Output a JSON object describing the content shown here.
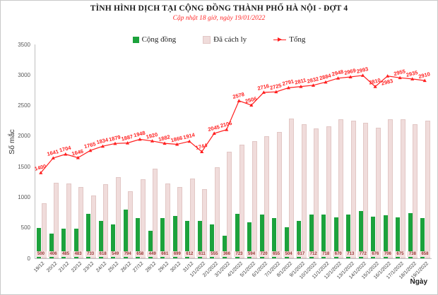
{
  "header": {
    "title": "TÌNH HÌNH DỊCH TẠI CỘNG ĐỒNG THÀNH PHỐ HÀ NỘI - ĐỢT 4",
    "subtitle": "Cập nhật 18 giờ, ngày 19/01/2022"
  },
  "legend": {
    "items": [
      {
        "label": "Cộng đồng",
        "color": "#1ca23c",
        "kind": "square"
      },
      {
        "label": "Đã cách ly",
        "color": "#f0dcdb",
        "border": "#e2c7c5",
        "kind": "square"
      },
      {
        "label": "Tổng",
        "color": "#ff1f1f",
        "kind": "line"
      }
    ]
  },
  "axes": {
    "y_title": "Số mắc",
    "x_title": "Ngày",
    "y_ticks": [
      0,
      500,
      1000,
      1500,
      2000,
      2500,
      3000,
      3500
    ]
  },
  "chart_data": {
    "type": "bar",
    "title": "TÌNH HÌNH DỊCH TẠI CỘNG ĐỒNG THÀNH PHỐ HÀ NỘI - ĐỢT 4",
    "subtitle": "Cập nhật 18 giờ, ngày 19/01/2022",
    "xlabel": "Ngày",
    "ylabel": "Số mắc",
    "ylim": [
      0,
      3500
    ],
    "grid": false,
    "legend_position": "top",
    "categories": [
      "19/12",
      "20/12",
      "21/12",
      "22/12",
      "23/12",
      "24/12",
      "25/12",
      "26/12",
      "27/12",
      "28/12",
      "29/12",
      "30/12",
      "31/12",
      "1/1/2022",
      "2/1/2022",
      "3/1/2022",
      "4/1/2022",
      "5/1/2022",
      "6/1/2022",
      "7/1/2022",
      "8/1/2022",
      "9/1/2022",
      "10/1/2022",
      "11/1/2022",
      "12/1/2022",
      "13/1/2022",
      "14/1/2022",
      "15/1/2022",
      "16/1/2022",
      "17/1/2022",
      "18/1/2022",
      "19/1/2022"
    ],
    "series": [
      {
        "name": "Cộng đồng",
        "kind": "bar",
        "color": "#1ca23c",
        "values": [
          500,
          406,
          485,
          483,
          733,
          618,
          549,
          794,
          658,
          449,
          661,
          699,
          612,
          611,
          555,
          366,
          723,
          594,
          720,
          655,
          504,
          617,
          712,
          718,
          670,
          713,
          772,
          676,
          706,
          675,
          738,
          658
        ]
      },
      {
        "name": "Đã cách ly",
        "kind": "bar",
        "color": "#f0dcdb",
        "border": "#e2c7c5",
        "values": [
          900,
          1235,
          1219,
          1163,
          1032,
          1216,
          1330,
          1093,
          1290,
          1471,
          1221,
          1167,
          1302,
          1133,
          1490,
          1740,
          1855,
          1912,
          1996,
          2070,
          2287,
          2194,
          2120,
          2166,
          2278,
          2256,
          2221,
          2134,
          2277,
          2280,
          2197,
          2252
        ]
      },
      {
        "name": "Tổng",
        "kind": "line",
        "color": "#ff1f1f",
        "values": [
          1400,
          1641,
          1704,
          1646,
          1765,
          1834,
          1879,
          1887,
          1948,
          1920,
          1882,
          1866,
          1914,
          1744,
          2045,
          2106,
          2578,
          2506,
          2716,
          2725,
          2791,
          2811,
          2832,
          2884,
          2948,
          2969,
          2993,
          2810,
          2983,
          2955,
          2935,
          2910
        ],
        "labels_below_indices": [
          28
        ]
      }
    ]
  }
}
